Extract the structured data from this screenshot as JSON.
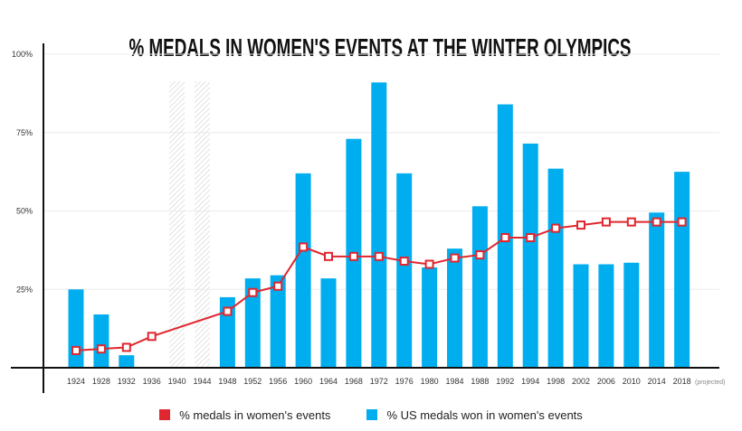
{
  "chart_data": {
    "type": "bar",
    "title": "% MEDALS IN WOMEN'S EVENTS AT THE WINTER OLYMPICS",
    "categories": [
      "1924",
      "1928",
      "1932",
      "1936",
      "1940",
      "1944",
      "1948",
      "1952",
      "1956",
      "1960",
      "1964",
      "1968",
      "1972",
      "1976",
      "1980",
      "1984",
      "1988",
      "1992",
      "1994",
      "1998",
      "2002",
      "2006",
      "2010",
      "2014",
      "2018"
    ],
    "projected_note": "(projected)",
    "ylim": [
      0,
      100
    ],
    "yticks": [
      "25%",
      "50%",
      "75%",
      "100%"
    ],
    "ytick_values": [
      25,
      50,
      75,
      100
    ],
    "cancelled": [
      "1940",
      "1944"
    ],
    "series": [
      {
        "name": "% US medals won in women's events",
        "type": "bar",
        "color": "#00AEEF",
        "values": [
          25,
          17,
          4,
          null,
          null,
          null,
          22.5,
          28.5,
          29.5,
          62,
          28.5,
          73,
          91,
          62,
          32,
          38,
          51.5,
          84,
          71.5,
          63.5,
          33,
          33,
          33.5,
          49.5,
          62.5
        ]
      },
      {
        "name": "% medals in women's events",
        "type": "line",
        "color": "#E0262E",
        "values": [
          5.5,
          6,
          6.5,
          10,
          null,
          null,
          18,
          24,
          26,
          38.5,
          35.5,
          35.5,
          35.5,
          34,
          33,
          35,
          36,
          41.5,
          41.5,
          44.5,
          45.5,
          46.5,
          46.5,
          46.5,
          46.5
        ]
      }
    ],
    "legend": [
      {
        "label": "% medals in women's events",
        "color": "#E0262E"
      },
      {
        "label": "% US medals won in women's events",
        "color": "#00AEEF"
      }
    ]
  }
}
